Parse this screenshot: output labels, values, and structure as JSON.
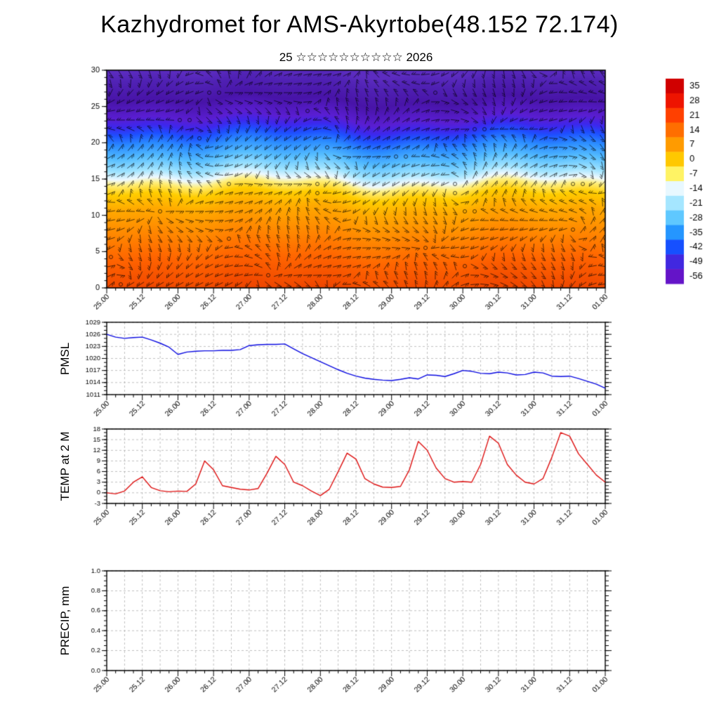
{
  "title": "Kazhydromet for AMS-Akyrtobe(48.152 72.174)",
  "subtitle": "25 ☆☆☆☆☆☆☆☆☆☆ 2026",
  "time": {
    "tick_labels": [
      "25.00",
      "25.12",
      "26.00",
      "26.12",
      "27.00",
      "27.12",
      "28.00",
      "28.12",
      "29.00",
      "29.12",
      "30.00",
      "30.12",
      "31.00",
      "31.12",
      "01.00"
    ],
    "span_hours": 168,
    "step_hours": 3
  },
  "panels": {
    "pmsl": {
      "label": "PMSL"
    },
    "temp": {
      "label": "TEMP at 2 M"
    },
    "precip": {
      "label": "PRECIP, mm"
    }
  },
  "chart_data": [
    {
      "type": "heatmap",
      "name": "time-height cross-section with wind barbs",
      "ylim": [
        0,
        30
      ],
      "yticks": [
        0,
        5,
        10,
        15,
        20,
        25,
        30
      ],
      "barbs": {
        "color": "#000000"
      },
      "level_colors": [
        {
          "level": 0,
          "color": "#f04800"
        },
        {
          "level": 4,
          "color": "#ff6400"
        },
        {
          "level": 8,
          "color": "#ff8c00"
        },
        {
          "level": 11,
          "color": "#ffaa00"
        },
        {
          "level": 13,
          "color": "#ffcd00"
        },
        {
          "level": 14.3,
          "color": "#ffee78"
        },
        {
          "level": 15.1,
          "color": "#eef9ff"
        },
        {
          "level": 16.2,
          "color": "#a0e4ff"
        },
        {
          "level": 18,
          "color": "#55bdff"
        },
        {
          "level": 19.8,
          "color": "#2b8cff"
        },
        {
          "level": 21.2,
          "color": "#1e50ff"
        },
        {
          "level": 22.3,
          "color": "#3c28ee"
        },
        {
          "level": 23.5,
          "color": "#5a1ed2"
        },
        {
          "level": 26,
          "color": "#4814a8"
        },
        {
          "level": 28.5,
          "color": "#5022b4"
        },
        {
          "level": 30,
          "color": "#5c2cc0"
        }
      ],
      "colorbar": {
        "tick_labels": [
          35,
          28,
          21,
          14,
          7,
          0,
          -7,
          -14,
          -21,
          -28,
          -35,
          -42,
          -49,
          -56
        ],
        "colors": [
          "#d00000",
          "#ee1400",
          "#ff4000",
          "#ff6e00",
          "#ff9b00",
          "#ffc800",
          "#fff364",
          "#e8f8ff",
          "#a5e6ff",
          "#5fc8ff",
          "#2596ff",
          "#1650ff",
          "#4128e0",
          "#6414c8"
        ]
      }
    },
    {
      "type": "line",
      "name": "PMSL",
      "color": "#0a0ae0",
      "ylim": [
        1011,
        1029
      ],
      "yticks": [
        1011,
        1014,
        1017,
        1020,
        1023,
        1026,
        1029
      ],
      "x_start_hour": 0,
      "x_step_hours": 3,
      "values": [
        1026.0,
        1025.3,
        1025.0,
        1025.2,
        1025.3,
        1024.6,
        1023.8,
        1022.8,
        1021.0,
        1021.6,
        1021.8,
        1021.9,
        1021.9,
        1022.0,
        1022.0,
        1022.2,
        1023.2,
        1023.4,
        1023.5,
        1023.5,
        1023.6,
        1022.4,
        1021.2,
        1020.2,
        1019.2,
        1018.2,
        1017.2,
        1016.3,
        1015.6,
        1015.1,
        1014.8,
        1014.6,
        1014.5,
        1014.8,
        1015.2,
        1014.9,
        1015.9,
        1015.8,
        1015.5,
        1016.2,
        1017.0,
        1016.8,
        1016.3,
        1016.2,
        1016.6,
        1016.4,
        1015.9,
        1016.0,
        1016.6,
        1016.4,
        1015.6,
        1015.5,
        1015.6,
        1015.0,
        1014.3,
        1013.6,
        1012.6
      ]
    },
    {
      "type": "line",
      "name": "TEMP at 2 M",
      "color": "#dd1111",
      "ylim": [
        -3,
        18
      ],
      "yticks": [
        -3,
        0,
        3,
        6,
        9,
        12,
        15,
        18
      ],
      "x_start_hour": 0,
      "x_step_hours": 3,
      "values": [
        0.0,
        -0.3,
        0.5,
        3.0,
        4.5,
        1.5,
        0.6,
        0.3,
        0.5,
        0.4,
        2.5,
        9.0,
        6.5,
        2.0,
        1.5,
        1.0,
        0.8,
        1.2,
        5.5,
        10.3,
        8.0,
        3.0,
        2.0,
        0.5,
        -0.8,
        1.0,
        6.0,
        11.2,
        9.5,
        4.0,
        2.5,
        1.6,
        1.5,
        1.8,
        6.5,
        14.5,
        12.0,
        7.0,
        4.0,
        3.0,
        3.2,
        3.0,
        8.0,
        16.0,
        14.0,
        8.0,
        5.0,
        3.0,
        2.5,
        4.0,
        10.0,
        17.0,
        16.0,
        11.0,
        8.0,
        5.0,
        3.0
      ]
    },
    {
      "type": "line",
      "name": "PRECIP, mm",
      "color": "#000000",
      "ylim": [
        0.0,
        1.0
      ],
      "yticks": [
        0.0,
        0.2,
        0.4,
        0.6,
        0.8,
        1.0
      ],
      "x_start_hour": 0,
      "x_step_hours": 3,
      "values": [],
      "note": "no precipitation plotted"
    }
  ]
}
